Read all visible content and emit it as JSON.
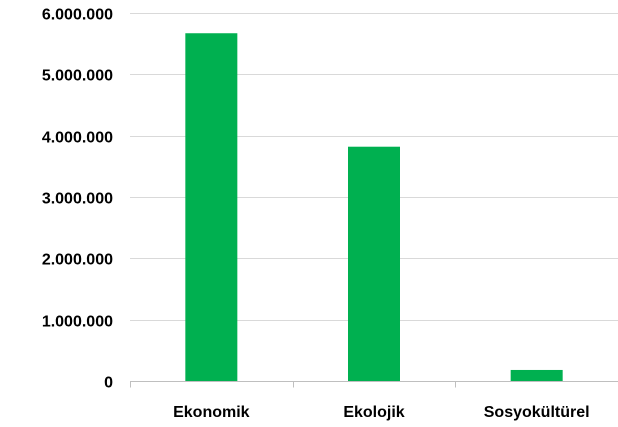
{
  "chart_data": {
    "type": "bar",
    "categories": [
      "Ekonomik",
      "Ekolojik",
      "Sosyokültürel"
    ],
    "values": [
      5670000,
      3820000,
      180000
    ],
    "title": "",
    "xlabel": "",
    "ylabel": "",
    "ylim": [
      0,
      6000000
    ],
    "yticks": [
      0,
      1000000,
      2000000,
      3000000,
      4000000,
      5000000,
      6000000
    ],
    "ytick_labels": [
      "0",
      "1.000.000",
      "2.000.000",
      "3.000.000",
      "4.000.000",
      "5.000.000",
      "6.000.000"
    ],
    "grid": true,
    "legend": "none",
    "bar_color": "#00b050"
  }
}
